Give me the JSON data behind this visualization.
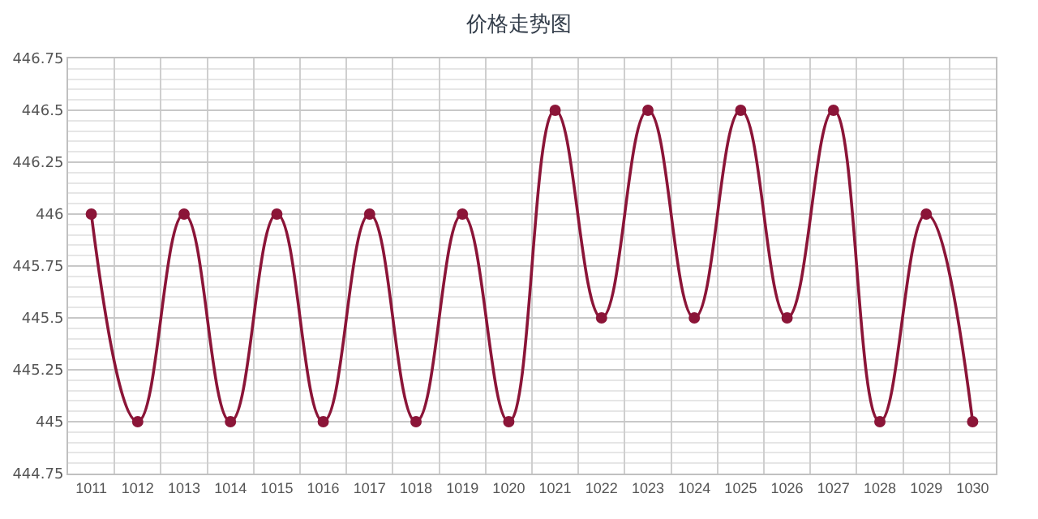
{
  "chart_data": {
    "type": "line",
    "title": "价格走势图",
    "categories": [
      "1011",
      "1012",
      "1013",
      "1014",
      "1015",
      "1016",
      "1017",
      "1018",
      "1019",
      "1020",
      "1021",
      "1022",
      "1023",
      "1024",
      "1025",
      "1026",
      "1027",
      "1028",
      "1029",
      "1030"
    ],
    "series": [
      {
        "color": "#8b1538",
        "values": [
          446,
          445,
          446,
          445,
          446,
          445,
          446,
          445,
          446,
          445,
          446.5,
          445.5,
          446.5,
          445.5,
          446.5,
          445.5,
          446.5,
          445,
          446,
          445
        ]
      }
    ],
    "ylim": [
      444.75,
      446.75
    ],
    "yticks": [
      444.75,
      445,
      445.25,
      445.5,
      445.75,
      446,
      446.25,
      446.5,
      446.75
    ],
    "grid": true,
    "legend": false,
    "marker": "circle",
    "line_style": "solid"
  }
}
